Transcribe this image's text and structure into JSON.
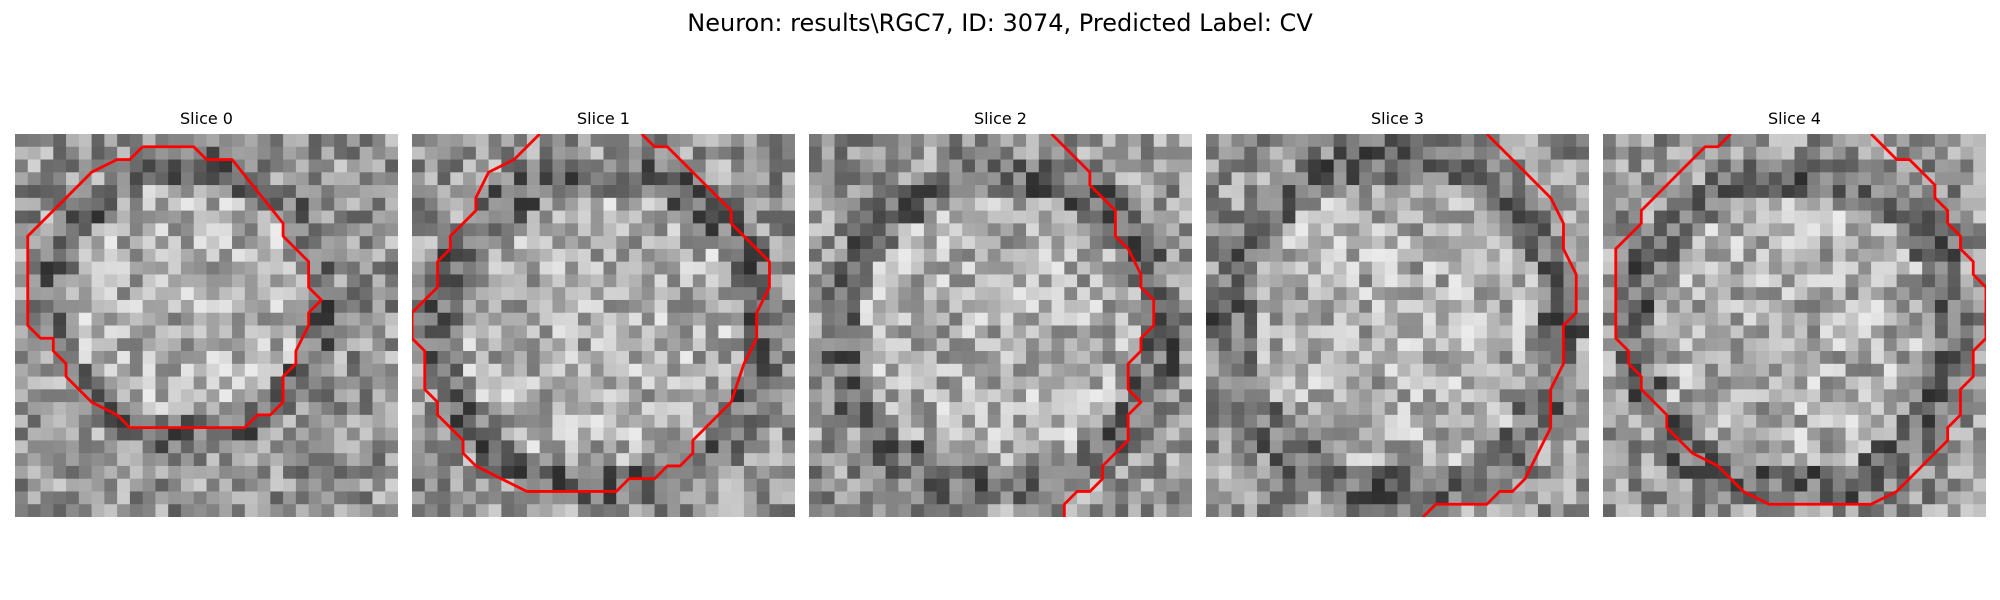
{
  "figure": {
    "title": "Neuron: results\\RGC7, ID: 3074, Predicted Label: CV",
    "contour_color": "#ff0000"
  },
  "panels": [
    {
      "title": "Slice 0",
      "grid_size": 30,
      "seed": 11,
      "center": [
        13.5,
        13.0
      ],
      "radius": 10.5,
      "contour": [
        [
          10,
          1
        ],
        [
          14,
          1
        ],
        [
          15,
          2
        ],
        [
          17,
          2
        ],
        [
          21,
          7
        ],
        [
          21,
          8
        ],
        [
          22,
          9
        ],
        [
          23,
          10
        ],
        [
          23,
          12
        ],
        [
          24,
          13
        ],
        [
          23,
          14
        ],
        [
          23,
          15
        ],
        [
          22,
          17
        ],
        [
          22,
          18
        ],
        [
          21,
          19
        ],
        [
          21,
          21
        ],
        [
          20,
          22
        ],
        [
          19,
          22
        ],
        [
          18,
          23
        ],
        [
          9,
          23
        ],
        [
          8,
          22
        ],
        [
          6,
          21
        ],
        [
          4,
          19
        ],
        [
          4,
          18
        ],
        [
          3,
          17
        ],
        [
          3,
          16
        ],
        [
          2,
          16
        ],
        [
          1,
          15
        ],
        [
          1,
          8
        ],
        [
          3,
          6
        ],
        [
          4,
          5
        ],
        [
          6,
          3
        ],
        [
          8,
          2
        ],
        [
          9,
          2
        ],
        [
          10,
          1
        ]
      ]
    },
    {
      "title": "Slice 1",
      "grid_size": 30,
      "seed": 23,
      "center": [
        15.0,
        15.5
      ],
      "radius": 12.5,
      "contour": [
        [
          18,
          0
        ],
        [
          19,
          1
        ],
        [
          20,
          1
        ],
        [
          21,
          2
        ],
        [
          22,
          3
        ],
        [
          23,
          4
        ],
        [
          24,
          5
        ],
        [
          25,
          6
        ],
        [
          25,
          7
        ],
        [
          26,
          8
        ],
        [
          27,
          9
        ],
        [
          28,
          10
        ],
        [
          28,
          12
        ],
        [
          27,
          14
        ],
        [
          27,
          16
        ],
        [
          26,
          18
        ],
        [
          25,
          21
        ],
        [
          24,
          22
        ],
        [
          23,
          23
        ],
        [
          22,
          24
        ],
        [
          22,
          25
        ],
        [
          21,
          26
        ],
        [
          20,
          26
        ],
        [
          19,
          27
        ],
        [
          17,
          27
        ],
        [
          16,
          28
        ],
        [
          9,
          28
        ],
        [
          7,
          27
        ],
        [
          5,
          26
        ],
        [
          4,
          25
        ],
        [
          4,
          24
        ],
        [
          3,
          23
        ],
        [
          2,
          22
        ],
        [
          2,
          21
        ],
        [
          1,
          20
        ],
        [
          1,
          17
        ],
        [
          0,
          16
        ],
        [
          0,
          14
        ],
        [
          1,
          13
        ],
        [
          2,
          12
        ],
        [
          2,
          10
        ],
        [
          3,
          9
        ],
        [
          3,
          8
        ],
        [
          4,
          7
        ],
        [
          5,
          6
        ],
        [
          5,
          5
        ],
        [
          6,
          3
        ],
        [
          8,
          2
        ],
        [
          9,
          1
        ],
        [
          10,
          0
        ]
      ]
    },
    {
      "title": "Slice 2",
      "grid_size": 30,
      "seed": 37,
      "center": [
        15.0,
        15.5
      ],
      "radius": 12.5,
      "contour": [
        [
          19,
          0
        ],
        [
          20,
          1
        ],
        [
          21,
          2
        ],
        [
          22,
          3
        ],
        [
          22,
          4
        ],
        [
          23,
          5
        ],
        [
          24,
          6
        ],
        [
          24,
          8
        ],
        [
          25,
          9
        ],
        [
          26,
          11
        ],
        [
          26,
          12
        ],
        [
          27,
          13
        ],
        [
          27,
          15
        ],
        [
          26,
          16
        ],
        [
          26,
          17
        ],
        [
          25,
          18
        ],
        [
          25,
          20
        ],
        [
          26,
          21
        ],
        [
          25,
          22
        ],
        [
          25,
          24
        ],
        [
          24,
          25
        ],
        [
          23,
          26
        ],
        [
          23,
          27
        ],
        [
          22,
          28
        ],
        [
          21,
          28
        ],
        [
          20,
          29
        ],
        [
          20,
          30
        ]
      ]
    },
    {
      "title": "Slice 3",
      "grid_size": 30,
      "seed": 49,
      "center": [
        15.0,
        15.0
      ],
      "radius": 13.0,
      "contour": [
        [
          22,
          0
        ],
        [
          25,
          3
        ],
        [
          27,
          5
        ],
        [
          28,
          7
        ],
        [
          28,
          9
        ],
        [
          29,
          11
        ],
        [
          29,
          14
        ],
        [
          28,
          15
        ],
        [
          28,
          18
        ],
        [
          27,
          20
        ],
        [
          27,
          23
        ],
        [
          26,
          25
        ],
        [
          25,
          27
        ],
        [
          24,
          28
        ],
        [
          23,
          28
        ],
        [
          22,
          29
        ],
        [
          18,
          29
        ],
        [
          17,
          30
        ]
      ]
    },
    {
      "title": "Slice 4",
      "grid_size": 30,
      "seed": 61,
      "center": [
        15.0,
        15.5
      ],
      "radius": 12.5,
      "contour": [
        [
          21,
          0
        ],
        [
          22,
          1
        ],
        [
          23,
          2
        ],
        [
          24,
          2
        ],
        [
          25,
          3
        ],
        [
          26,
          4
        ],
        [
          26,
          5
        ],
        [
          27,
          6
        ],
        [
          27,
          7
        ],
        [
          28,
          8
        ],
        [
          28,
          9
        ],
        [
          29,
          10
        ],
        [
          29,
          11
        ],
        [
          30,
          12
        ],
        [
          30,
          16
        ],
        [
          29,
          17
        ],
        [
          29,
          19
        ],
        [
          28,
          20
        ],
        [
          28,
          22
        ],
        [
          27,
          23
        ],
        [
          27,
          24
        ],
        [
          26,
          25
        ],
        [
          25,
          26
        ],
        [
          24,
          27
        ],
        [
          23,
          28
        ],
        [
          21,
          29
        ],
        [
          13,
          29
        ],
        [
          11,
          28
        ],
        [
          10,
          27
        ],
        [
          9,
          26
        ],
        [
          7,
          25
        ],
        [
          6,
          24
        ],
        [
          5,
          23
        ],
        [
          5,
          22
        ],
        [
          4,
          21
        ],
        [
          3,
          20
        ],
        [
          3,
          19
        ],
        [
          2,
          18
        ],
        [
          2,
          17
        ],
        [
          1,
          16
        ],
        [
          1,
          9
        ],
        [
          2,
          8
        ],
        [
          3,
          7
        ],
        [
          3,
          6
        ],
        [
          4,
          5
        ],
        [
          5,
          4
        ],
        [
          6,
          3
        ],
        [
          7,
          2
        ],
        [
          8,
          1
        ],
        [
          9,
          1
        ],
        [
          10,
          0
        ]
      ]
    }
  ]
}
